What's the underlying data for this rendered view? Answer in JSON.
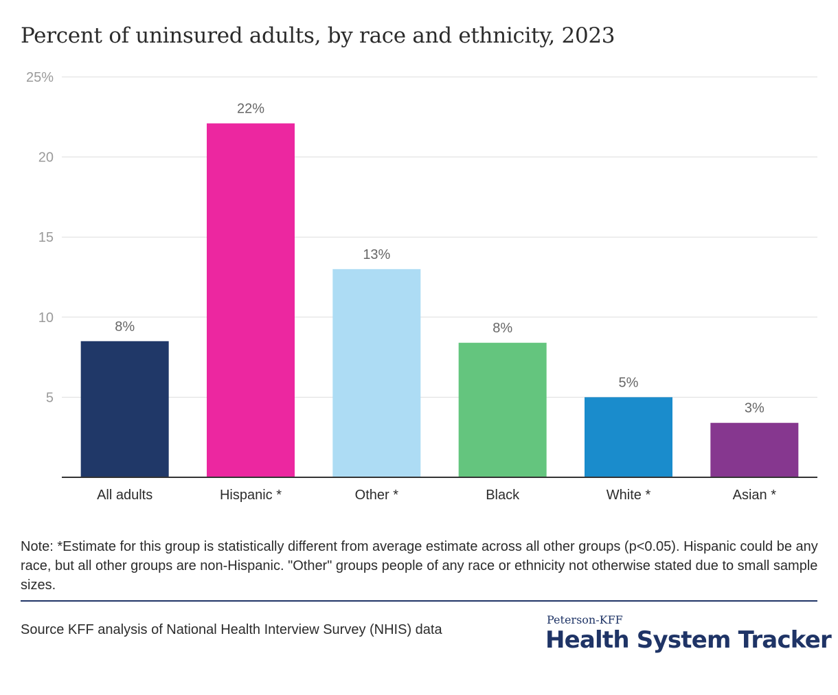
{
  "title": "Percent of uninsured adults, by race and ethnicity, 2023",
  "note": "Note: *Estimate for this group is statistically different from average estimate across all other groups (p<0.05). Hispanic could be any race, but all other groups are non-Hispanic. \"Other\" groups people of any race or ethnicity not otherwise stated due to small sample sizes.",
  "source": "Source KFF analysis of National Health Interview Survey (NHIS) data",
  "branding": {
    "line1": "Peterson-KFF",
    "line2": "Health System Tracker"
  },
  "chart_data": {
    "type": "bar",
    "categories": [
      "All adults",
      "Hispanic *",
      "Other *",
      "Black",
      "White *",
      "Asian *"
    ],
    "values": [
      8.5,
      22.1,
      13.0,
      8.4,
      5.0,
      3.4
    ],
    "data_labels": [
      "8%",
      "22%",
      "13%",
      "8%",
      "5%",
      "3%"
    ],
    "colors": [
      "#203868",
      "#ec27a0",
      "#addcf4",
      "#64c57e",
      "#1a8ccc",
      "#86378f"
    ],
    "yticks": [
      5,
      10,
      15,
      20,
      25
    ],
    "ytick_labels": [
      "5",
      "10",
      "15",
      "20",
      "25%"
    ],
    "ylim": [
      0,
      25
    ],
    "grid": true,
    "gridline_color": "#dddddd",
    "axis_color": "#333333"
  }
}
